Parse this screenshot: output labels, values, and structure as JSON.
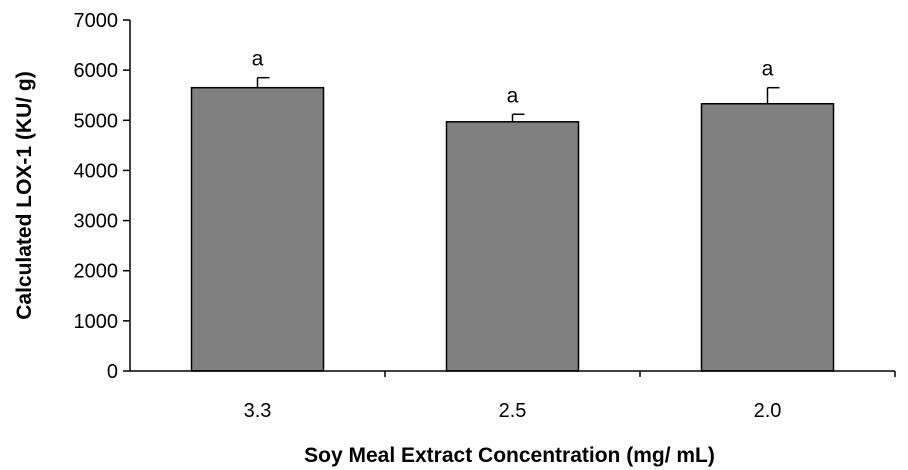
{
  "chart_data": {
    "type": "bar",
    "categories": [
      "3.3",
      "2.5",
      "2.0"
    ],
    "values": [
      5650,
      4970,
      5330
    ],
    "error": [
      200,
      150,
      320
    ],
    "significance": [
      "a",
      "a",
      "a"
    ],
    "ylabel": "Calculated LOX-1 (KU/ g)",
    "xlabel": "Soy Meal Extract Concentration (mg/ mL)",
    "ylim": [
      0,
      7000
    ],
    "yticks": [
      0,
      1000,
      2000,
      3000,
      4000,
      5000,
      6000,
      7000
    ],
    "grid": false,
    "legend": "none",
    "bar_color": "#808080",
    "bar_edge_color": "#000000"
  }
}
